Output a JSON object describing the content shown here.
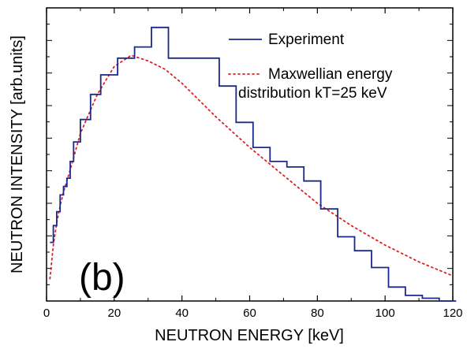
{
  "chart_data": {
    "type": "line",
    "panel_label": "(b)",
    "xlabel": "NEUTRON ENERGY [keV]",
    "ylabel": "NEUTRON INTENSITY [arb.units]",
    "xlim": [
      0,
      120
    ],
    "ylim": [
      0,
      1.05
    ],
    "x_ticks": [
      0,
      20,
      40,
      60,
      80,
      100,
      120
    ],
    "x_tick_labels": [
      "0",
      "20",
      "40",
      "60",
      "80",
      "100",
      "120"
    ],
    "y_tick_labels_shown": false,
    "grid": false,
    "legend_position": "top-right",
    "legend": [
      {
        "label_lines": [
          "Experiment"
        ],
        "color": "#1a2a8c",
        "style": "solid"
      },
      {
        "label_lines": [
          "Maxwellian energy",
          "distribution kT=25 keV"
        ],
        "color": "#e02020",
        "style": "dotted"
      }
    ],
    "series": [
      {
        "name": "Experiment",
        "style": "step",
        "color": "#1a2a8c",
        "bin_edges": [
          1,
          2,
          3,
          4,
          5,
          6,
          7,
          8,
          10,
          13,
          16,
          21,
          26,
          31,
          36,
          41,
          46,
          51,
          56,
          61,
          66,
          71,
          76,
          81,
          86,
          91,
          96,
          101,
          106,
          111,
          116,
          121
        ],
        "values": [
          0.21,
          0.27,
          0.32,
          0.38,
          0.41,
          0.44,
          0.5,
          0.57,
          0.65,
          0.74,
          0.81,
          0.87,
          0.91,
          0.98,
          0.87,
          0.87,
          0.87,
          0.77,
          0.64,
          0.55,
          0.5,
          0.48,
          0.43,
          0.33,
          0.23,
          0.18,
          0.12,
          0.05,
          0.02,
          0.01,
          0.0
        ]
      },
      {
        "name": "Maxwellian energy distribution kT=25 keV",
        "style": "dotted",
        "color": "#e02020",
        "x": [
          1,
          2,
          3,
          4,
          5,
          7,
          10,
          15,
          20,
          25,
          30,
          35,
          40,
          45,
          50,
          60,
          70,
          80,
          90,
          100,
          110,
          120
        ],
        "y": [
          0.08,
          0.2,
          0.28,
          0.34,
          0.39,
          0.47,
          0.6,
          0.74,
          0.84,
          0.88,
          0.86,
          0.83,
          0.78,
          0.72,
          0.66,
          0.55,
          0.45,
          0.35,
          0.27,
          0.2,
          0.14,
          0.09
        ]
      }
    ]
  }
}
